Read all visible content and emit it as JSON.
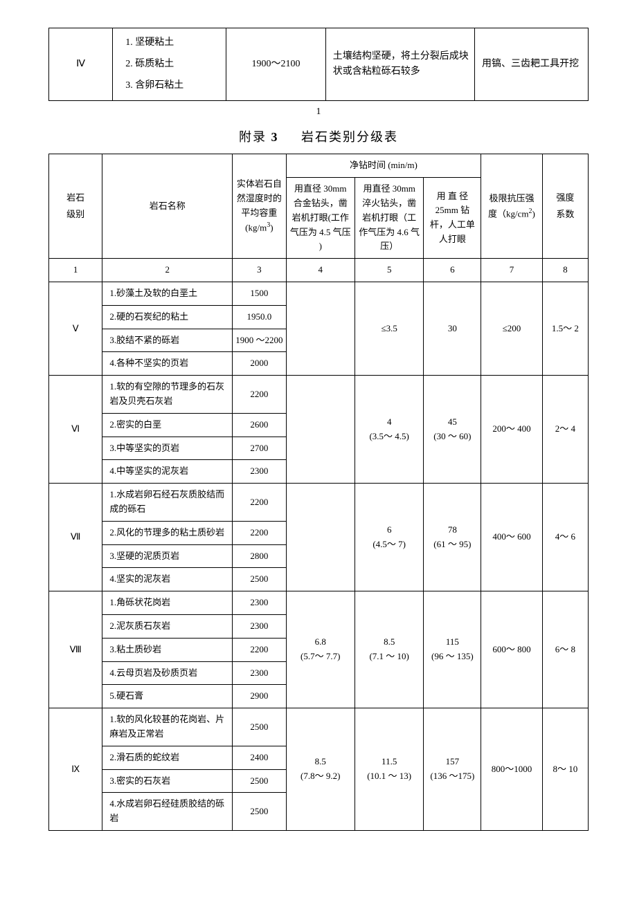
{
  "soil_table": {
    "rows": [
      {
        "level": "Ⅳ",
        "names": "1. 坚硬粘土\n2. 砾质粘土\n3. 含卵石粘土",
        "density": "1900～2100",
        "feature": "土壤结构坚硬，将土分裂后成块状或含粘粒砾石较多",
        "tool": "用镐、三齿耙工具开挖"
      }
    ]
  },
  "page_number_1": "1",
  "appendix_title_prefix": "附录",
  "appendix_title_num": "3",
  "appendix_title_rest": "岩石类别分级表",
  "rock_table": {
    "headers": {
      "level": "岩石\n级别",
      "name": "岩石名称",
      "density": "实体岩石自然湿度时的平均容重(kg/m",
      "density_sup": "3",
      "drill_time": "净钻时间 (min/m)",
      "d1": "用直径 30mm 合金钻头，凿岩机打眼(工作气压为 4.5 气压 )",
      "d2": "用直径 30mm 淬火钻头，凿岩机打眼（工作气压为 4.6 气压）",
      "d3": "用 直 径 25mm 钻杆，人工单人打眼",
      "strength": "极限抗压强 度（kg/cm",
      "strength_sup": "2",
      "coef": "强度\n系数",
      "col_nums": [
        "1",
        "2",
        "3",
        "4",
        "5",
        "6",
        "7",
        "8"
      ]
    },
    "groups": [
      {
        "level": "Ⅴ",
        "rows": [
          {
            "name": "1.砂藻土及软的白垩土",
            "density": "1500"
          },
          {
            "name": "2.硬的石炭纪的粘土",
            "density": "1950.0"
          },
          {
            "name": "3.胶结不紧的砾岩",
            "density": "1900 ～2200"
          },
          {
            "name": "4.各种不坚实的页岩",
            "density": "2000"
          }
        ],
        "d1": "",
        "d2": "≤3.5",
        "d3": "30",
        "strength": "≤200",
        "coef": "1.5～ 2"
      },
      {
        "level": "Ⅵ",
        "rows": [
          {
            "name": "1.软的有空隙的节理多的石灰岩及贝壳石灰岩",
            "density": "2200"
          },
          {
            "name": "2.密实的白垩",
            "density": "2600"
          },
          {
            "name": "3.中等坚实的页岩",
            "density": "2700"
          },
          {
            "name": "4.中等坚实的泥灰岩",
            "density": "2300"
          }
        ],
        "d1": "",
        "d2": "4\n(3.5～ 4.5)",
        "d3": "45\n(30 ～ 60)",
        "strength": "200～ 400",
        "coef": "2～ 4"
      },
      {
        "level": "Ⅶ",
        "rows": [
          {
            "name": "1.水成岩卵石经石灰质胶结而成的砾石",
            "density": "2200"
          },
          {
            "name": "2.风化的节理多的粘土质砂岩",
            "density": "2200"
          },
          {
            "name": "3.坚硬的泥质页岩",
            "density": "2800"
          },
          {
            "name": "4.坚实的泥灰岩",
            "density": "2500"
          }
        ],
        "d1": "",
        "d2": "6\n(4.5～ 7)",
        "d3": "78\n(61 ～ 95)",
        "strength": "400～ 600",
        "coef": "4～ 6"
      },
      {
        "level": "Ⅷ",
        "rows": [
          {
            "name": "1.角砾状花岗岩",
            "density": "2300"
          },
          {
            "name": "2.泥灰质石灰岩",
            "density": "2300"
          },
          {
            "name": "3.粘土质砂岩",
            "density": "2200"
          },
          {
            "name": "4.云母页岩及砂质页岩",
            "density": "2300"
          },
          {
            "name": "5.硬石膏",
            "density": "2900"
          }
        ],
        "d1": "6.8\n(5.7～ 7.7)",
        "d2": "8.5\n(7.1 ～ 10)",
        "d3": "115\n(96 ～ 135)",
        "strength": "600～ 800",
        "coef": "6～ 8"
      },
      {
        "level": "Ⅸ",
        "rows": [
          {
            "name": "1.软的风化较甚的花岗岩、片麻岩及正常岩",
            "density": "2500"
          },
          {
            "name": "2.滑石质的蛇纹岩",
            "density": "2400"
          },
          {
            "name": "3.密实的石灰岩",
            "density": "2500"
          },
          {
            "name": "4.水成岩卵石经硅质胶结的砾岩",
            "density": "2500"
          }
        ],
        "d1": "8.5\n(7.8～ 9.2)",
        "d2": "11.5\n(10.1 ～ 13)",
        "d3": "157\n(136 ～175)",
        "strength": "800～1000",
        "coef": "8～ 10"
      }
    ]
  }
}
